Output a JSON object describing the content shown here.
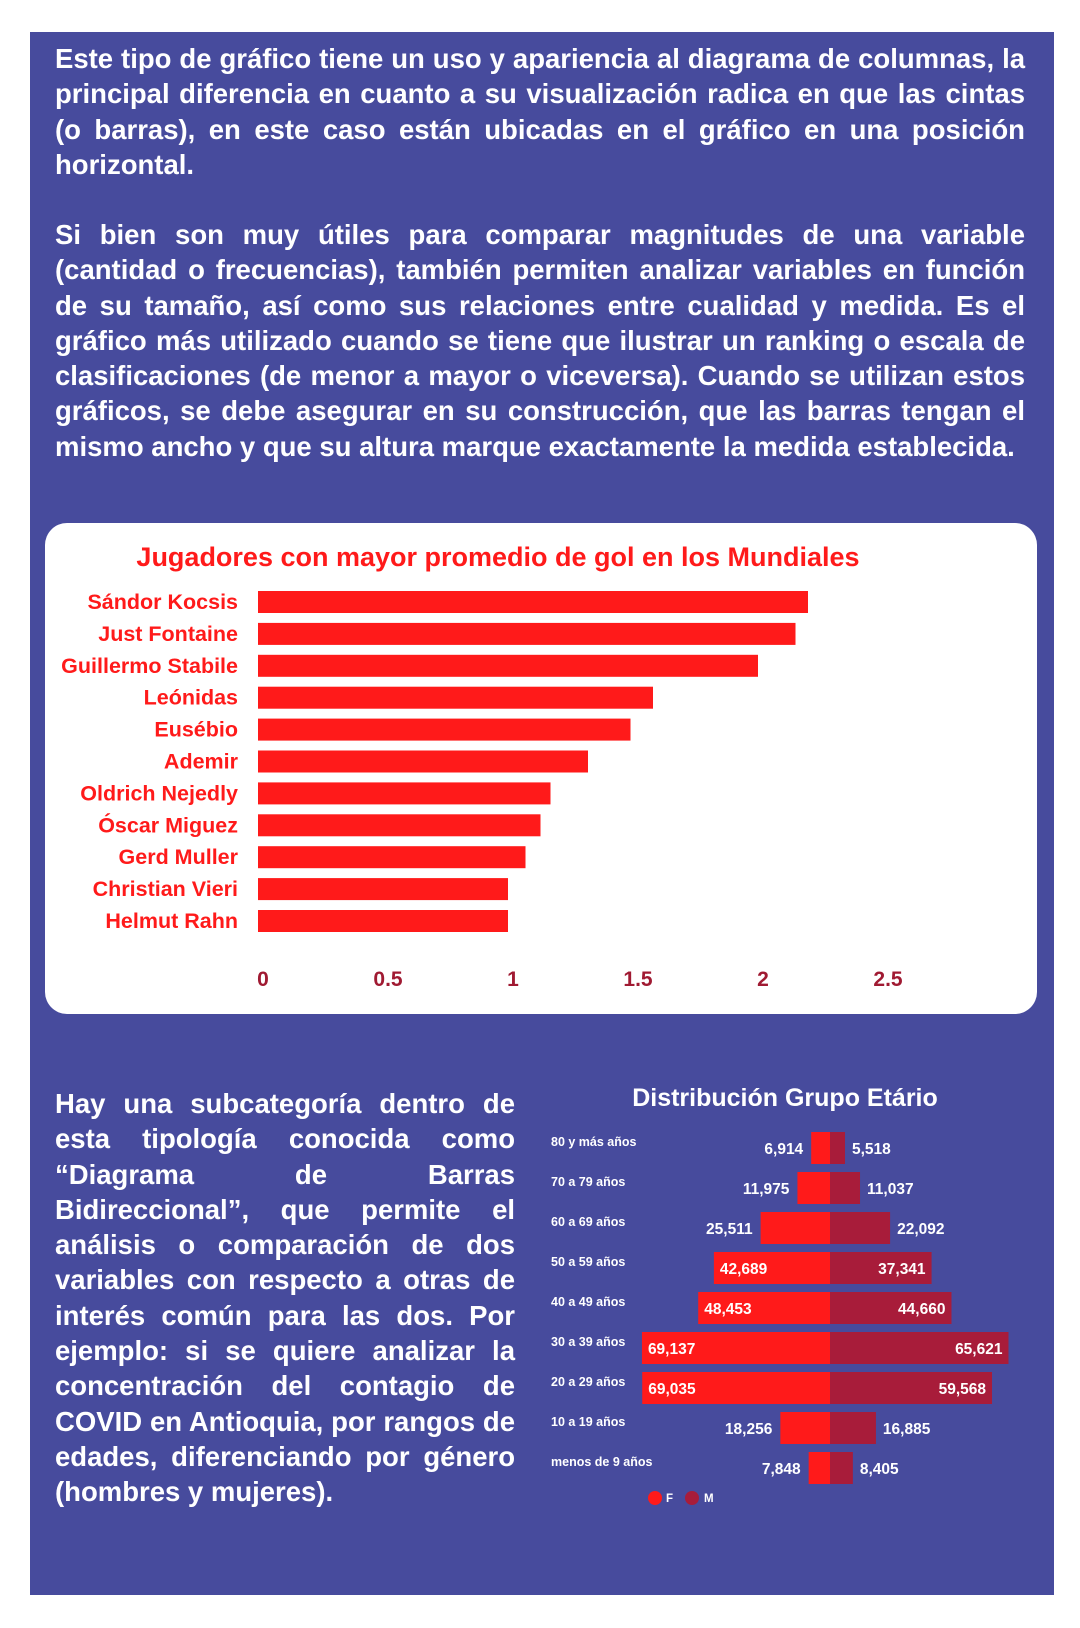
{
  "intro": {
    "paragraph1": "Este tipo de gráfico tiene un uso y apariencia al diagrama de columnas, la principal diferencia en cuanto a su visualización radica en que las cintas (o barras), en este caso están ubicadas en el gráfico en una posición horizontal.",
    "paragraph2": "Si bien son muy útiles para comparar magnitudes de una variable (cantidad o frecuencias), también permiten analizar variables en función de su tamaño, así como sus relaciones entre cualidad y medida. Es el gráfico más utilizado cuando se tiene que ilustrar un ranking o escala de clasificaciones (de menor a mayor o viceversa). Cuando se utilizan estos gráficos, se debe asegurar en su construcción, que las barras tengan el mismo ancho y que su altura marque exactamente la medida establecida."
  },
  "bidirectional_text": "Hay una subcategoría dentro de esta tipología conocida como “Diagrama de Barras Bidireccional”, que permite el análisis o comparación de dos variables con respecto a otras de interés común para las dos. Por ejemplo: si se quiere analizar la concentración del contagio de COVID en Antioquia, por rangos de edades, diferenciando por género (hombres y mujeres).",
  "colors": {
    "background_panel": "#474b9d",
    "bar_red": "#ff1a1a",
    "bar_dark_red": "#a81c3a",
    "tick_color": "#a01a32",
    "text_white": "#ffffff"
  },
  "chart_data": [
    {
      "type": "bar",
      "orientation": "horizontal",
      "title": "Jugadores con mayor promedio de gol en los Mundiales",
      "categories": [
        "Sándor Kocsis",
        "Just Fontaine",
        "Guillermo Stabile",
        "Leónidas",
        "Eusébio",
        "Ademir",
        "Oldrich Nejedly",
        "Óscar Miguez",
        "Gerd Muller",
        "Christian Vieri",
        "Helmut Rahn"
      ],
      "values": [
        2.2,
        2.15,
        2.0,
        1.58,
        1.49,
        1.32,
        1.17,
        1.13,
        1.07,
        1.0,
        1.0
      ],
      "xlim": [
        0,
        2.75
      ],
      "xticks": [
        "0",
        "0.5",
        "1",
        "1.5",
        "2",
        "2.5"
      ],
      "grid": false,
      "legend": false
    },
    {
      "type": "bar",
      "orientation": "horizontal-bidirectional",
      "title": "Distribución Grupo Etário",
      "categories": [
        "80 y más años",
        "70 a 79 años",
        "60 a 69 años",
        "50 a 59 años",
        "40 a 49 años",
        "30 a 39 años",
        "20 a 29 años",
        "10 a 19 años",
        "menos de 9 años"
      ],
      "series": [
        {
          "name": "F",
          "color": "#ff1a1a",
          "values": [
            6914,
            11975,
            25511,
            42689,
            48453,
            69137,
            69035,
            18256,
            7848
          ],
          "labels": [
            "6,914",
            "11,975",
            "25,511",
            "42,689",
            "48,453",
            "69,137",
            "69,035",
            "18,256",
            "7,848"
          ]
        },
        {
          "name": "M",
          "color": "#a81c3a",
          "values": [
            5518,
            11037,
            22092,
            37341,
            44660,
            65621,
            59568,
            16885,
            8405
          ],
          "labels": [
            "5,518",
            "11,037",
            "22,092",
            "37,341",
            "44,660",
            "65,621",
            "59,568",
            "16,885",
            "8,405"
          ]
        }
      ],
      "legend": "bottom",
      "grid": false
    }
  ]
}
